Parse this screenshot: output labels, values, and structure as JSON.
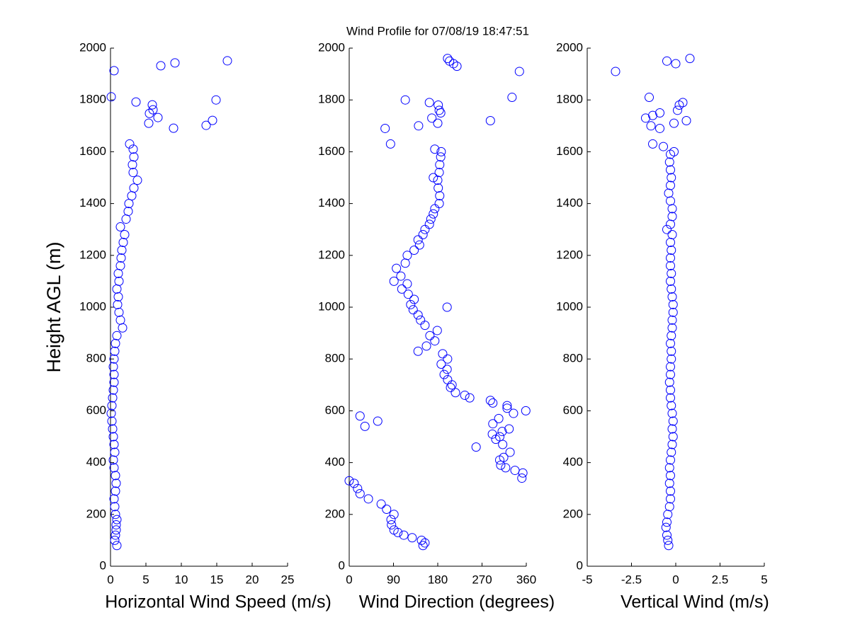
{
  "title": "Wind Profile for  07/08/19 18:47:51",
  "chart_data": [
    {
      "type": "scatter",
      "xlabel": "Horizontal Wind Speed (m/s)",
      "ylabel": "Height AGL (m)",
      "color": "#0000ff",
      "xlim": [
        0,
        25
      ],
      "xticks": [
        0,
        5,
        10,
        15,
        20,
        25
      ],
      "ylim": [
        0,
        2000
      ],
      "yticks": [
        0,
        200,
        400,
        600,
        800,
        1000,
        1200,
        1400,
        1600,
        1800,
        2000
      ],
      "x": [
        0.9,
        0.6,
        0.7,
        0.8,
        0.8,
        0.9,
        0.7,
        0.6,
        0.5,
        0.7,
        0.8,
        0.7,
        0.5,
        0.4,
        0.6,
        0.5,
        0.4,
        0.3,
        0.2,
        0.1,
        0.2,
        0.3,
        0.4,
        0.5,
        0.5,
        0.4,
        0.5,
        0.6,
        0.7,
        0.9,
        1.7,
        1.4,
        1.2,
        1.0,
        1.1,
        0.9,
        1.2,
        1.1,
        1.4,
        1.5,
        1.6,
        1.8,
        2.0,
        1.4,
        2.2,
        2.5,
        2.6,
        3.0,
        3.3,
        3.8,
        3.2,
        3.1,
        3.3,
        3.2,
        2.7,
        0.5,
        0.1,
        3.6,
        6.0,
        5.9,
        5.5,
        6.7,
        5.4,
        8.9,
        13.5,
        14.4,
        14.9,
        16.5,
        9.1,
        7.1
      ],
      "y": [
        80,
        100,
        120,
        140,
        160,
        180,
        200,
        230,
        260,
        290,
        320,
        350,
        380,
        410,
        440,
        470,
        500,
        530,
        560,
        590,
        620,
        650,
        680,
        710,
        740,
        770,
        800,
        830,
        860,
        890,
        920,
        950,
        980,
        1010,
        1040,
        1070,
        1100,
        1130,
        1160,
        1190,
        1220,
        1250,
        1280,
        1310,
        1340,
        1370,
        1400,
        1430,
        1460,
        1490,
        1520,
        1550,
        1580,
        1610,
        1630,
        1913,
        1812,
        1792,
        1762,
        1781,
        1748,
        1732,
        1710,
        1691,
        1702,
        1721,
        1800,
        1951,
        1943,
        1932
      ]
    },
    {
      "type": "scatter",
      "xlabel": "Wind Direction (degrees)",
      "color": "#0000ff",
      "xlim": [
        0,
        360
      ],
      "xticks": [
        0,
        90,
        180,
        270,
        360
      ],
      "ylim": [
        0,
        2000
      ],
      "yticks": [
        0,
        200,
        400,
        600,
        800,
        1000,
        1200,
        1400,
        1600,
        1800,
        2000
      ],
      "x": [
        150,
        154,
        147,
        128,
        111,
        99,
        91,
        86,
        85,
        91,
        76,
        65,
        39,
        22,
        17,
        10,
        0,
        351,
        353,
        337,
        318,
        308,
        306,
        314,
        327,
        258,
        312,
        298,
        306,
        291,
        311,
        325,
        292,
        304,
        334,
        359,
        321,
        321,
        292,
        287,
        245,
        235,
        22,
        58,
        32,
        216,
        206,
        209,
        200,
        193,
        199,
        187,
        200,
        190,
        140,
        157,
        174,
        164,
        179,
        154,
        145,
        140,
        130,
        199,
        125,
        132,
        120,
        107,
        118,
        91,
        105,
        96,
        114,
        118,
        132,
        143,
        140,
        150,
        154,
        163,
        166,
        171,
        174,
        183,
        184,
        181,
        180,
        171,
        183,
        184,
        186,
        187,
        174,
        84,
        73,
        141,
        287,
        180,
        168,
        186,
        183,
        181,
        163,
        114,
        331,
        346,
        219,
        212,
        204,
        200
      ],
      "y": [
        80,
        90,
        100,
        110,
        120,
        130,
        140,
        160,
        180,
        200,
        220,
        240,
        260,
        280,
        300,
        320,
        330,
        340,
        360,
        370,
        380,
        390,
        410,
        420,
        440,
        460,
        470,
        490,
        500,
        510,
        520,
        530,
        550,
        570,
        590,
        600,
        610,
        620,
        630,
        640,
        650,
        660,
        580,
        560,
        540,
        670,
        690,
        700,
        720,
        740,
        760,
        780,
        800,
        820,
        830,
        850,
        870,
        890,
        910,
        930,
        950,
        970,
        990,
        1000,
        1010,
        1030,
        1050,
        1070,
        1090,
        1100,
        1120,
        1150,
        1170,
        1200,
        1220,
        1240,
        1260,
        1280,
        1300,
        1320,
        1340,
        1360,
        1380,
        1400,
        1430,
        1460,
        1490,
        1500,
        1520,
        1550,
        1580,
        1600,
        1610,
        1630,
        1690,
        1700,
        1720,
        1710,
        1730,
        1750,
        1760,
        1780,
        1790,
        1800,
        1810,
        1910,
        1930,
        1940,
        1950,
        1960
      ]
    },
    {
      "type": "scatter",
      "xlabel": "Vertical Wind (m/s)",
      "color": "#0000ff",
      "xlim": [
        -5,
        5
      ],
      "xticks": [
        -5,
        -2.5,
        0,
        2.5,
        5
      ],
      "ylim": [
        0,
        2000
      ],
      "yticks": [
        0,
        200,
        400,
        600,
        800,
        1000,
        1200,
        1400,
        1600,
        1800,
        2000
      ],
      "x": [
        -0.4,
        -0.45,
        -0.5,
        -0.55,
        -0.5,
        -0.45,
        -0.35,
        -0.3,
        -0.3,
        -0.35,
        -0.3,
        -0.35,
        -0.3,
        -0.25,
        -0.2,
        -0.15,
        -0.2,
        -0.15,
        -0.2,
        -0.25,
        -0.3,
        -0.3,
        -0.35,
        -0.3,
        -0.3,
        -0.25,
        -0.25,
        -0.3,
        -0.25,
        -0.2,
        -0.2,
        -0.15,
        -0.15,
        -0.2,
        -0.25,
        -0.3,
        -0.25,
        -0.3,
        -0.3,
        -0.25,
        -0.3,
        -0.2,
        -0.5,
        -0.3,
        -0.2,
        -0.2,
        -0.3,
        -0.4,
        -0.3,
        -0.25,
        -0.3,
        -0.35,
        -0.3,
        -0.1,
        -0.7,
        -1.3,
        -0.9,
        -1.4,
        -0.1,
        0.6,
        -1.7,
        -1.3,
        -0.9,
        0.1,
        0.2,
        0.4,
        -1.5,
        -3.4,
        0.0,
        -0.5,
        0.8
      ],
      "y": [
        80,
        100,
        120,
        150,
        170,
        200,
        230,
        260,
        290,
        320,
        350,
        380,
        410,
        440,
        470,
        500,
        530,
        560,
        590,
        620,
        650,
        680,
        710,
        740,
        770,
        800,
        830,
        860,
        890,
        920,
        950,
        980,
        1010,
        1040,
        1070,
        1100,
        1130,
        1160,
        1190,
        1220,
        1250,
        1280,
        1300,
        1320,
        1350,
        1380,
        1410,
        1440,
        1470,
        1500,
        1530,
        1560,
        1590,
        1600,
        1620,
        1630,
        1690,
        1700,
        1710,
        1720,
        1730,
        1740,
        1750,
        1760,
        1780,
        1790,
        1810,
        1910,
        1940,
        1950,
        1960
      ]
    }
  ]
}
